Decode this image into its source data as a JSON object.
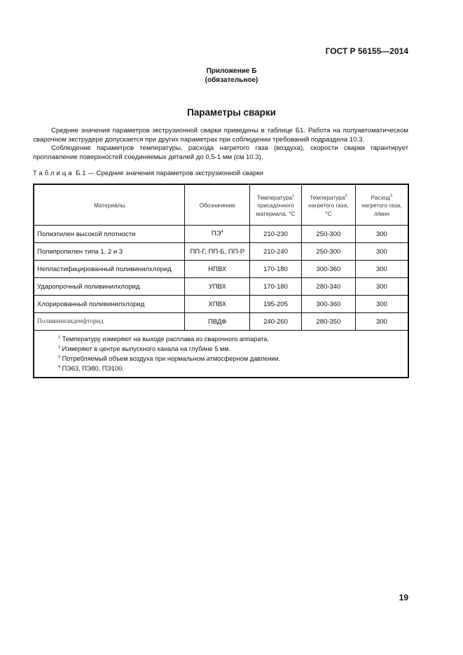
{
  "header": {
    "doc_id": "ГОСТ Р 56155—2014"
  },
  "appendix": {
    "title": "Приложение Б",
    "subtitle": "(обязательное)"
  },
  "section_title": "Параметры сварки",
  "paragraphs": [
    "Средние значения параметров экструзионной сварки приведены в таблице Б1. Работа на полуавтоматическом сварочном экструдере допускается при других параметрах при соблюдении требований подраздела 10.3.",
    "Соблюдение параметров температуры, расхода нагретого газа (воздуха), скорости сварки гарантирует проплавление поверхностей соединяемых деталей до 0,5-1 мм (см 10.3)."
  ],
  "table": {
    "caption_label": "Таблица",
    "caption_text": "Б.1 — Средние значения параметров экструзионной сварки",
    "headers": [
      {
        "text": "Материалы",
        "sup": ""
      },
      {
        "text": "Обозначение",
        "sup": ""
      },
      {
        "text": "Температура",
        "sup": "1",
        "rest": "присадочного материала, °С"
      },
      {
        "text": "Температура",
        "sup": "2",
        "rest": "нагретого газа, °С"
      },
      {
        "text": "Расход",
        "sup": "3",
        "rest": "нагретого газа, л/мин"
      }
    ],
    "rows": [
      {
        "material": "Полиэтилен высокой плотности",
        "code": "ПЭ",
        "code_sup": "4",
        "t_filler": "210-230",
        "t_gas": "250-300",
        "flow": "300"
      },
      {
        "material": "Полипропилен типа 1, 2 и 3",
        "code": "ПП-Г, ПП-Б, ПП-Р",
        "code_sup": "",
        "t_filler": "210-240",
        "t_gas": "250-300",
        "flow": "300"
      },
      {
        "material": "Непластифицированный поливинилхлорид",
        "code": "НПВХ",
        "code_sup": "",
        "t_filler": "170-180",
        "t_gas": "300-360",
        "flow": "300"
      },
      {
        "material": "Ударопрочный поливинилхлорид",
        "code": "УПВХ",
        "code_sup": "",
        "t_filler": "170-180",
        "t_gas": "280-340",
        "flow": "300"
      },
      {
        "material": "Хлорированный поливинилхлорид",
        "code": "ХПВХ",
        "code_sup": "",
        "t_filler": "195-205",
        "t_gas": "300-360",
        "flow": "300"
      },
      {
        "material": "Поливинилиденфторид",
        "code": "ПВДФ",
        "code_sup": "",
        "t_filler": "240-260",
        "t_gas": "280-350",
        "flow": "300"
      }
    ],
    "footnotes": [
      {
        "n": "1",
        "text": "Температуру измеряют на выходе расплава из сварочного аппарата."
      },
      {
        "n": "2",
        "text": "Измеряют в центре выпускного канала на глубине 5 мм."
      },
      {
        "n": "3",
        "text": "Потребляемый объем воздуха при нормальном атмосферном давлении."
      },
      {
        "n": "4",
        "text": "ПЭ63, ПЭ80, ПЭ100."
      }
    ]
  },
  "page_number": "19"
}
